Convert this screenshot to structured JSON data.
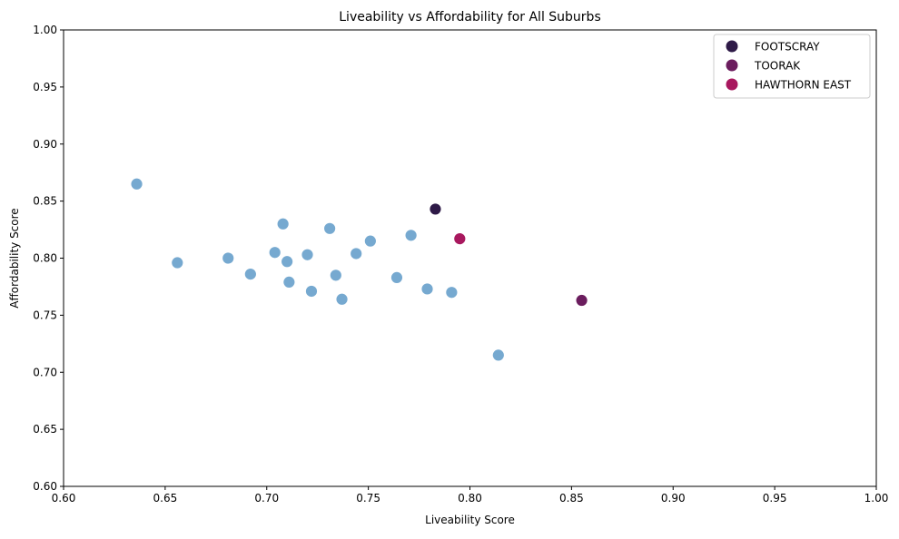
{
  "chart_data": {
    "type": "scatter",
    "title": "Liveability vs Affordability for All Suburbs",
    "xlabel": "Liveability Score",
    "ylabel": "Affordability Score",
    "xlim": [
      0.6,
      1.0
    ],
    "ylim": [
      0.6,
      1.0
    ],
    "xticks": [
      "0.60",
      "0.65",
      "0.70",
      "0.75",
      "0.80",
      "0.85",
      "0.90",
      "0.95",
      "1.00"
    ],
    "yticks": [
      "0.60",
      "0.65",
      "0.70",
      "0.75",
      "0.80",
      "0.85",
      "0.90",
      "0.95",
      "1.00"
    ],
    "grid": false,
    "legend_position": "top-right",
    "base_color": "#76a9d0",
    "base_points": [
      {
        "x": 0.636,
        "y": 0.865
      },
      {
        "x": 0.656,
        "y": 0.796
      },
      {
        "x": 0.681,
        "y": 0.8
      },
      {
        "x": 0.692,
        "y": 0.786
      },
      {
        "x": 0.704,
        "y": 0.805
      },
      {
        "x": 0.708,
        "y": 0.83
      },
      {
        "x": 0.71,
        "y": 0.797
      },
      {
        "x": 0.711,
        "y": 0.779
      },
      {
        "x": 0.72,
        "y": 0.803
      },
      {
        "x": 0.722,
        "y": 0.771
      },
      {
        "x": 0.731,
        "y": 0.826
      },
      {
        "x": 0.734,
        "y": 0.785
      },
      {
        "x": 0.737,
        "y": 0.764
      },
      {
        "x": 0.744,
        "y": 0.804
      },
      {
        "x": 0.751,
        "y": 0.815
      },
      {
        "x": 0.764,
        "y": 0.783
      },
      {
        "x": 0.771,
        "y": 0.82
      },
      {
        "x": 0.779,
        "y": 0.773
      },
      {
        "x": 0.791,
        "y": 0.77
      },
      {
        "x": 0.814,
        "y": 0.715
      }
    ],
    "series": [
      {
        "name": "FOOTSCRAY",
        "color": "#2e1a47",
        "x": 0.783,
        "y": 0.843
      },
      {
        "name": "TOORAK",
        "color": "#6b1d5e",
        "x": 0.855,
        "y": 0.763
      },
      {
        "name": "HAWTHORN EAST",
        "color": "#a8185e",
        "x": 0.795,
        "y": 0.817
      }
    ]
  }
}
